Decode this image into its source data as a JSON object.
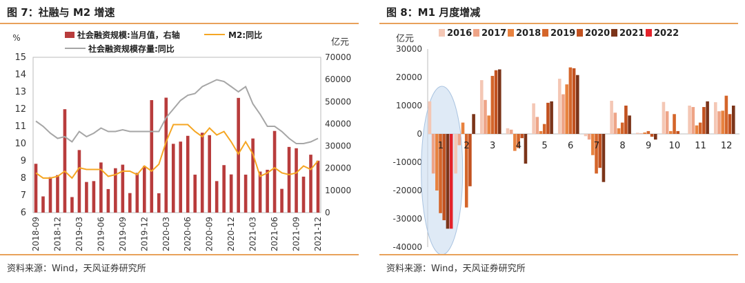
{
  "panels": {
    "left": {
      "title": "图 7：社融与 M2 增速",
      "source": "资料来源：Wind，天风证券研究所"
    },
    "right": {
      "title": "图 8：M1 月度增减",
      "source": "资料来源：Wind，天风证券研究所"
    }
  },
  "colors": {
    "accent_rule": "#e8a15a",
    "bar_left": "#b83c3c",
    "m2_line": "#f5a623",
    "stock_line": "#a6a6a6",
    "highlight_ellipse": "#c9dcf0"
  },
  "chart_data": [
    {
      "type": "bar",
      "title": "",
      "y_left_unit": "%",
      "y_right_unit": "亿元",
      "y_left_ticks": [
        "6",
        "7",
        "8",
        "9",
        "10",
        "11",
        "12",
        "13",
        "14",
        "15"
      ],
      "y_right_ticks": [
        "0",
        "10000",
        "20000",
        "30000",
        "40000",
        "50000",
        "60000",
        "70000"
      ],
      "ylim_left": [
        6,
        15
      ],
      "ylim_right": [
        0,
        70000
      ],
      "x_tick_labels": [
        "2018-09",
        "2018-12",
        "2019-03",
        "2019-06",
        "2019-09",
        "2019-12",
        "2020-03",
        "2020-06",
        "2020-09",
        "2020-12",
        "2021-03",
        "2021-06",
        "2021-09",
        "2021-12"
      ],
      "legend": {
        "bar": "社会融资规模:当月值，右轴",
        "m2": "M2:同比",
        "stock": "社会融资规模存量:同比"
      },
      "months": [
        "2018-09",
        "2018-10",
        "2018-11",
        "2018-12",
        "2019-01",
        "2019-02",
        "2019-03",
        "2019-04",
        "2019-05",
        "2019-06",
        "2019-07",
        "2019-08",
        "2019-09",
        "2019-10",
        "2019-11",
        "2019-12",
        "2020-01",
        "2020-02",
        "2020-03",
        "2020-04",
        "2020-05",
        "2020-06",
        "2020-07",
        "2020-08",
        "2020-09",
        "2020-10",
        "2020-11",
        "2020-12",
        "2021-01",
        "2021-02",
        "2021-03",
        "2021-04",
        "2021-05",
        "2021-06",
        "2021-07",
        "2021-08",
        "2021-09",
        "2021-10",
        "2021-11",
        "2021-12"
      ],
      "series": [
        {
          "name": "社会融资规模:当月值，右轴",
          "kind": "bar",
          "axis": "right",
          "values": [
            22000,
            7300,
            16000,
            16900,
            46600,
            7000,
            28200,
            13800,
            14200,
            22600,
            10600,
            20000,
            21600,
            8800,
            17900,
            21000,
            50700,
            8700,
            51800,
            31000,
            32000,
            34600,
            17100,
            36000,
            34900,
            14200,
            21400,
            17200,
            51700,
            17100,
            33400,
            18500,
            19300,
            36800,
            10700,
            29600,
            29000,
            16200,
            26100,
            23400
          ]
        },
        {
          "name": "M2:同比",
          "kind": "line",
          "axis": "left",
          "values": [
            8.3,
            8.0,
            8.0,
            8.1,
            8.4,
            8.0,
            8.6,
            8.5,
            8.5,
            8.5,
            8.1,
            8.2,
            8.4,
            8.4,
            8.2,
            8.7,
            8.4,
            8.8,
            10.1,
            11.1,
            11.1,
            11.1,
            10.7,
            10.4,
            10.9,
            10.5,
            10.7,
            10.1,
            9.4,
            10.1,
            9.4,
            8.1,
            8.3,
            8.6,
            8.3,
            8.2,
            8.3,
            8.7,
            8.5,
            9.0
          ]
        },
        {
          "name": "社会融资规模存量:同比",
          "kind": "line",
          "axis": "left",
          "values": [
            11.3,
            11.0,
            10.6,
            10.3,
            10.4,
            10.1,
            10.7,
            10.4,
            10.6,
            10.9,
            10.7,
            10.7,
            10.8,
            10.7,
            10.7,
            10.7,
            10.7,
            10.7,
            11.5,
            12.0,
            12.5,
            12.8,
            12.9,
            13.3,
            13.5,
            13.7,
            13.6,
            13.3,
            13.0,
            13.3,
            12.3,
            11.7,
            11.0,
            11.0,
            10.7,
            10.3,
            10.0,
            10.0,
            10.1,
            10.3
          ]
        }
      ]
    },
    {
      "type": "bar",
      "title": "",
      "y_unit": "亿元",
      "ylim": [
        -40000,
        30000
      ],
      "y_ticks": [
        "30000",
        "20000",
        "10000",
        "0",
        "-10000",
        "-20000",
        "-30000",
        "-40000"
      ],
      "categories": [
        "1",
        "2",
        "3",
        "4",
        "5",
        "6",
        "7",
        "8",
        "9",
        "10",
        "11",
        "12"
      ],
      "series": [
        {
          "name": "2016",
          "color": "#f4c7b5",
          "values": [
            11500,
            -14000,
            19000,
            2000,
            10800,
            19500,
            -800,
            11700,
            400,
            11300,
            10000,
            11200
          ]
        },
        {
          "name": "2017",
          "color": "#eea487",
          "values": [
            -14000,
            -4000,
            12000,
            1500,
            6000,
            14000,
            -2000,
            7500,
            200,
            8000,
            9500,
            8000
          ]
        },
        {
          "name": "2018",
          "color": "#e8823f",
          "values": [
            -20000,
            4000,
            6500,
            -6000,
            1000,
            17500,
            -7500,
            2000,
            500,
            1000,
            3000,
            8200
          ]
        },
        {
          "name": "2019",
          "color": "#d4652a",
          "values": [
            -28000,
            -26000,
            20500,
            -5000,
            3500,
            23500,
            -14000,
            4000,
            1000,
            7000,
            4000,
            13500
          ]
        },
        {
          "name": "2020",
          "color": "#c25220",
          "values": [
            -30500,
            -18500,
            22500,
            -1500,
            11000,
            23200,
            -12000,
            10000,
            -1000,
            1000,
            9500,
            7000
          ]
        },
        {
          "name": "2021",
          "color": "#7b3419",
          "values": [
            -33500,
            7000,
            22800,
            -10500,
            11500,
            20800,
            -17000,
            6500,
            -2000,
            0,
            11500,
            10000
          ]
        },
        {
          "name": "2022",
          "color": "#e3222a",
          "values": [
            -33500,
            null,
            null,
            null,
            null,
            null,
            null,
            null,
            null,
            null,
            null,
            null
          ]
        }
      ]
    }
  ]
}
